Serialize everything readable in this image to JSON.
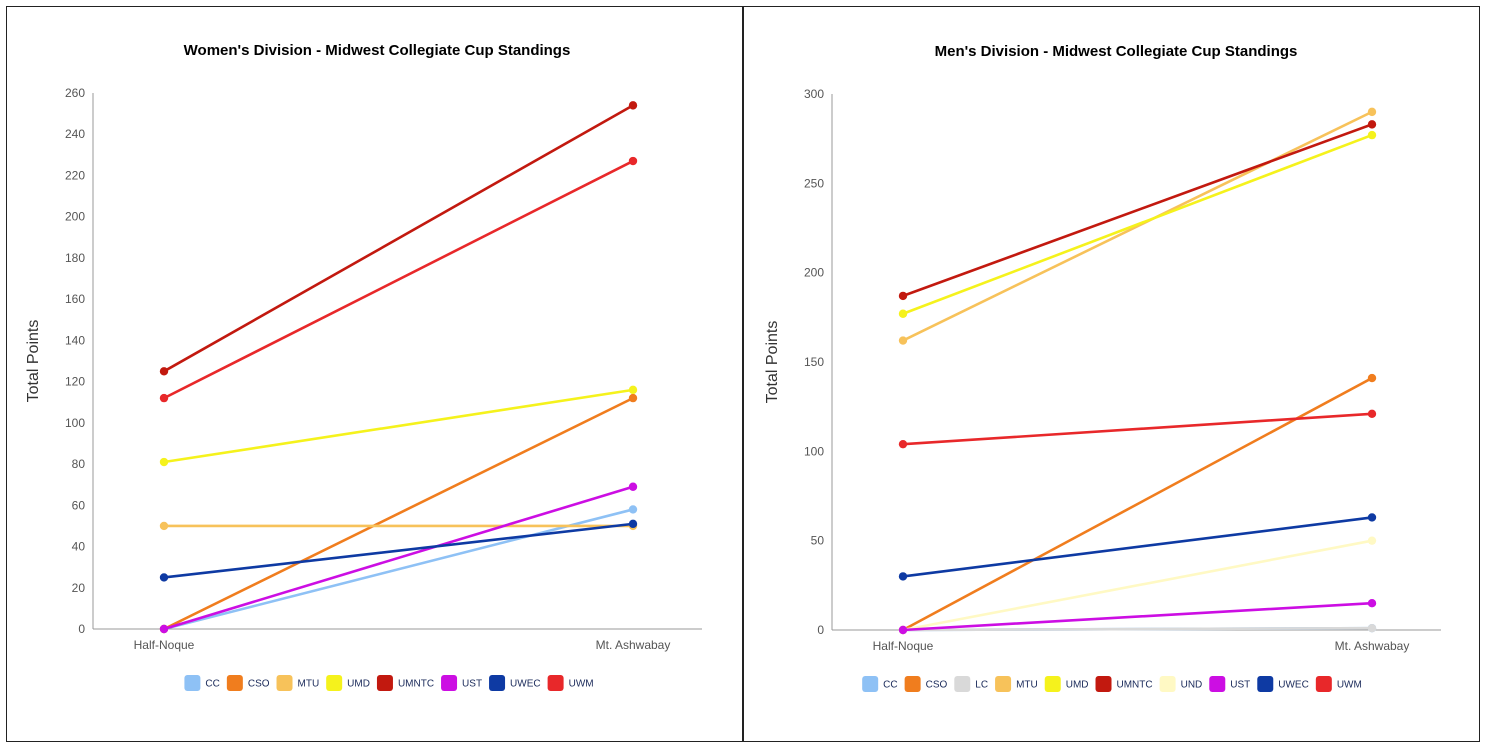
{
  "chart_data": [
    {
      "type": "line",
      "title": "Women's Division - Midwest Collegiate Cup Standings",
      "xlabel": "",
      "ylabel": "Total Points",
      "categories": [
        "Half-Noque",
        "Mt. Ashwabay"
      ],
      "ylim": [
        0,
        260
      ],
      "yticks": [
        0,
        20,
        40,
        60,
        80,
        100,
        120,
        140,
        160,
        180,
        200,
        220,
        240,
        260
      ],
      "grid": false,
      "legend": "bottom",
      "series": [
        {
          "name": "CC",
          "color": "#8ec1f5",
          "values": [
            0,
            58
          ]
        },
        {
          "name": "CSO",
          "color": "#f07d1e",
          "values": [
            0,
            112
          ]
        },
        {
          "name": "MTU",
          "color": "#f7c25a",
          "values": [
            50,
            50
          ]
        },
        {
          "name": "UMD",
          "color": "#f5f21c",
          "values": [
            81,
            116
          ]
        },
        {
          "name": "UMNTC",
          "color": "#c2190f",
          "values": [
            125,
            254
          ]
        },
        {
          "name": "UST",
          "color": "#cc0ee3",
          "values": [
            0,
            69
          ]
        },
        {
          "name": "UWEC",
          "color": "#0e3aa3",
          "values": [
            25,
            51
          ]
        },
        {
          "name": "UWM",
          "color": "#e8282a",
          "values": [
            112,
            227
          ]
        }
      ]
    },
    {
      "type": "line",
      "title": "Men's Division - Midwest Collegiate Cup Standings",
      "xlabel": "",
      "ylabel": "Total Points",
      "categories": [
        "Half-Noque",
        "Mt. Ashwabay"
      ],
      "ylim": [
        0,
        300
      ],
      "yticks": [
        0,
        50,
        100,
        150,
        200,
        250,
        300
      ],
      "grid": false,
      "legend": "bottom",
      "series": [
        {
          "name": "CC",
          "color": "#8ec1f5",
          "values": [
            0,
            1
          ]
        },
        {
          "name": "CSO",
          "color": "#f07d1e",
          "values": [
            0,
            141
          ]
        },
        {
          "name": "LC",
          "color": "#d9d9d9",
          "values": [
            0,
            1
          ]
        },
        {
          "name": "MTU",
          "color": "#f7c25a",
          "values": [
            162,
            290
          ]
        },
        {
          "name": "UMD",
          "color": "#f5f21c",
          "values": [
            177,
            277
          ]
        },
        {
          "name": "UMNTC",
          "color": "#c2190f",
          "values": [
            187,
            283
          ]
        },
        {
          "name": "UND",
          "color": "#fff9c4",
          "values": [
            0,
            50
          ]
        },
        {
          "name": "UST",
          "color": "#cc0ee3",
          "values": [
            0,
            15
          ]
        },
        {
          "name": "UWEC",
          "color": "#0e3aa3",
          "values": [
            30,
            63
          ]
        },
        {
          "name": "UWM",
          "color": "#e8282a",
          "values": [
            104,
            121
          ]
        }
      ]
    }
  ]
}
